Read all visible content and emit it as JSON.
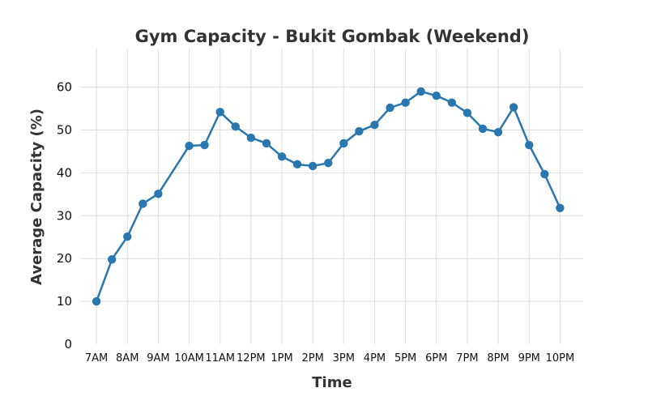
{
  "chart_data": {
    "type": "line",
    "title": "Gym Capacity - Bukit Gombak (Weekend)",
    "xlabel": "Time",
    "ylabel": "Average Capacity (%)",
    "ylim": [
      0,
      69
    ],
    "yticks": [
      0,
      10,
      20,
      30,
      40,
      50,
      60
    ],
    "xlim": [
      6.5,
      22.75
    ],
    "xticks": [
      {
        "x": 7,
        "label": "7AM"
      },
      {
        "x": 8,
        "label": "8AM"
      },
      {
        "x": 9,
        "label": "9AM"
      },
      {
        "x": 10,
        "label": "10AM"
      },
      {
        "x": 11,
        "label": "11AM"
      },
      {
        "x": 12,
        "label": "12PM"
      },
      {
        "x": 13,
        "label": "1PM"
      },
      {
        "x": 14,
        "label": "2PM"
      },
      {
        "x": 15,
        "label": "3PM"
      },
      {
        "x": 16,
        "label": "4PM"
      },
      {
        "x": 17,
        "label": "5PM"
      },
      {
        "x": 18,
        "label": "6PM"
      },
      {
        "x": 19,
        "label": "7PM"
      },
      {
        "x": 20,
        "label": "8PM"
      },
      {
        "x": 21,
        "label": "9PM"
      },
      {
        "x": 22,
        "label": "10PM"
      }
    ],
    "grid": true,
    "color": "#2a77b0",
    "series": [
      {
        "x": [
          7,
          7.5,
          8,
          8.5,
          9,
          10,
          10.5,
          11,
          11.5,
          12,
          12.5,
          13,
          13.5,
          14,
          14.5,
          15,
          15.5,
          16,
          16.5,
          17,
          17.5,
          18,
          18.5,
          19,
          19.5,
          20,
          20.5,
          21,
          21.5,
          22
        ],
        "y": [
          10,
          19.8,
          25.1,
          32.8,
          35.1,
          46.3,
          46.5,
          54.2,
          50.8,
          48.2,
          46.9,
          43.8,
          42.0,
          41.6,
          42.3,
          46.9,
          49.7,
          51.2,
          55.2,
          56.4,
          59.0,
          58.0,
          56.4,
          54.0,
          50.3,
          49.5,
          55.3,
          46.5,
          39.7,
          31.8
        ]
      }
    ]
  }
}
